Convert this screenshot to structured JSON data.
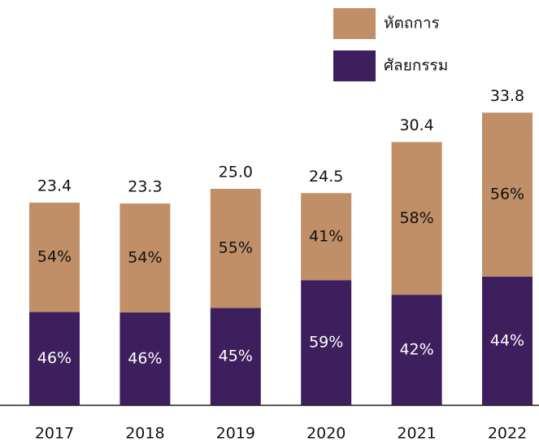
{
  "chart_data": {
    "type": "stacked-bar",
    "categories": [
      "2017",
      "2018",
      "2019",
      "2020",
      "2021",
      "2022"
    ],
    "values": [
      23.4,
      23.3,
      25.0,
      24.5,
      30.4,
      33.8
    ],
    "value_labels": [
      "23.4",
      "23.3",
      "25.0",
      "24.5",
      "30.4",
      "33.8"
    ],
    "series": [
      {
        "name": "ศัลยกรรม",
        "color": "#3e1f5e",
        "values": [
          46,
          46,
          45,
          59,
          42,
          44
        ],
        "value_labels": [
          "46%",
          "46%",
          "45%",
          "59%",
          "42%",
          "44%"
        ]
      },
      {
        "name": "หัตถการ",
        "color": "#c08f68",
        "values": [
          54,
          54,
          55,
          41,
          58,
          56
        ],
        "value_labels": [
          "54%",
          "54%",
          "55%",
          "41%",
          "58%",
          "56%"
        ]
      }
    ],
    "legend": "top-right"
  }
}
